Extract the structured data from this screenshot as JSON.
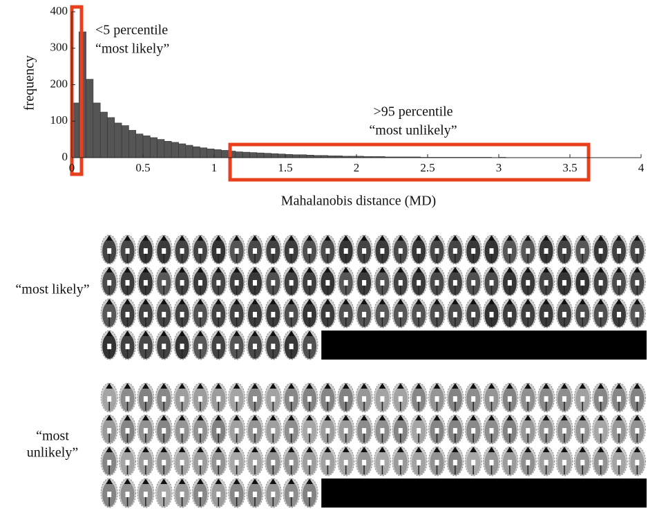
{
  "chart_data": {
    "type": "histogram",
    "xlabel": "Mahalanobis distance (MD)",
    "ylabel": "frequency",
    "annotations": [
      "<5 percentile",
      "“most likely”",
      ">95 percentile",
      "“most unlikely”"
    ],
    "bins": [
      0,
      0.05,
      0.1,
      0.15,
      0.2,
      0.25,
      0.3,
      0.35,
      0.4,
      0.45,
      0.5,
      0.55,
      0.6,
      0.65,
      0.7,
      0.75,
      0.8,
      0.85,
      0.9,
      0.95,
      1,
      1.05,
      1.1,
      1.15,
      1.2,
      1.25,
      1.3,
      1.35,
      1.4,
      1.45,
      1.5,
      1.55,
      1.6,
      1.65,
      1.7,
      1.75,
      1.8,
      1.85,
      1.9,
      1.95,
      2,
      2.05,
      2.1,
      2.15,
      2.2,
      2.25,
      2.3,
      2.35,
      2.4,
      2.45,
      2.5,
      2.55,
      2.6,
      2.65,
      2.7,
      2.75,
      2.8,
      2.85,
      2.9,
      2.95,
      3,
      3.05,
      3.1,
      3.15,
      3.2,
      3.25,
      3.3,
      3.35,
      3.4,
      3.45,
      3.5,
      3.55,
      3.6
    ],
    "values": [
      150,
      345,
      215,
      150,
      125,
      110,
      95,
      88,
      75,
      65,
      60,
      55,
      50,
      45,
      42,
      38,
      34,
      30,
      27,
      24,
      22,
      20,
      18,
      16,
      15,
      14,
      13,
      12,
      11,
      10,
      9,
      8,
      8,
      7,
      6,
      6,
      5,
      5,
      4,
      4,
      4,
      3,
      3,
      3,
      2,
      2,
      2,
      2,
      2,
      1,
      1,
      1,
      1,
      1,
      1,
      1,
      1,
      1,
      1,
      0,
      1,
      0,
      0,
      0,
      0,
      0,
      0,
      0,
      0,
      0,
      0,
      0
    ],
    "color": "#555555",
    "xlim": [
      0,
      4
    ],
    "ylim": [
      0,
      400
    ],
    "xticks": [
      0,
      0.5,
      1,
      1.5,
      2,
      2.5,
      3,
      3.5,
      4
    ],
    "yticks": [
      0,
      100,
      200,
      300,
      400
    ]
  },
  "panels": [
    {
      "label": [
        "“most likely”"
      ]
    },
    {
      "label": [
        "“most",
        "unlikely”"
      ]
    }
  ]
}
